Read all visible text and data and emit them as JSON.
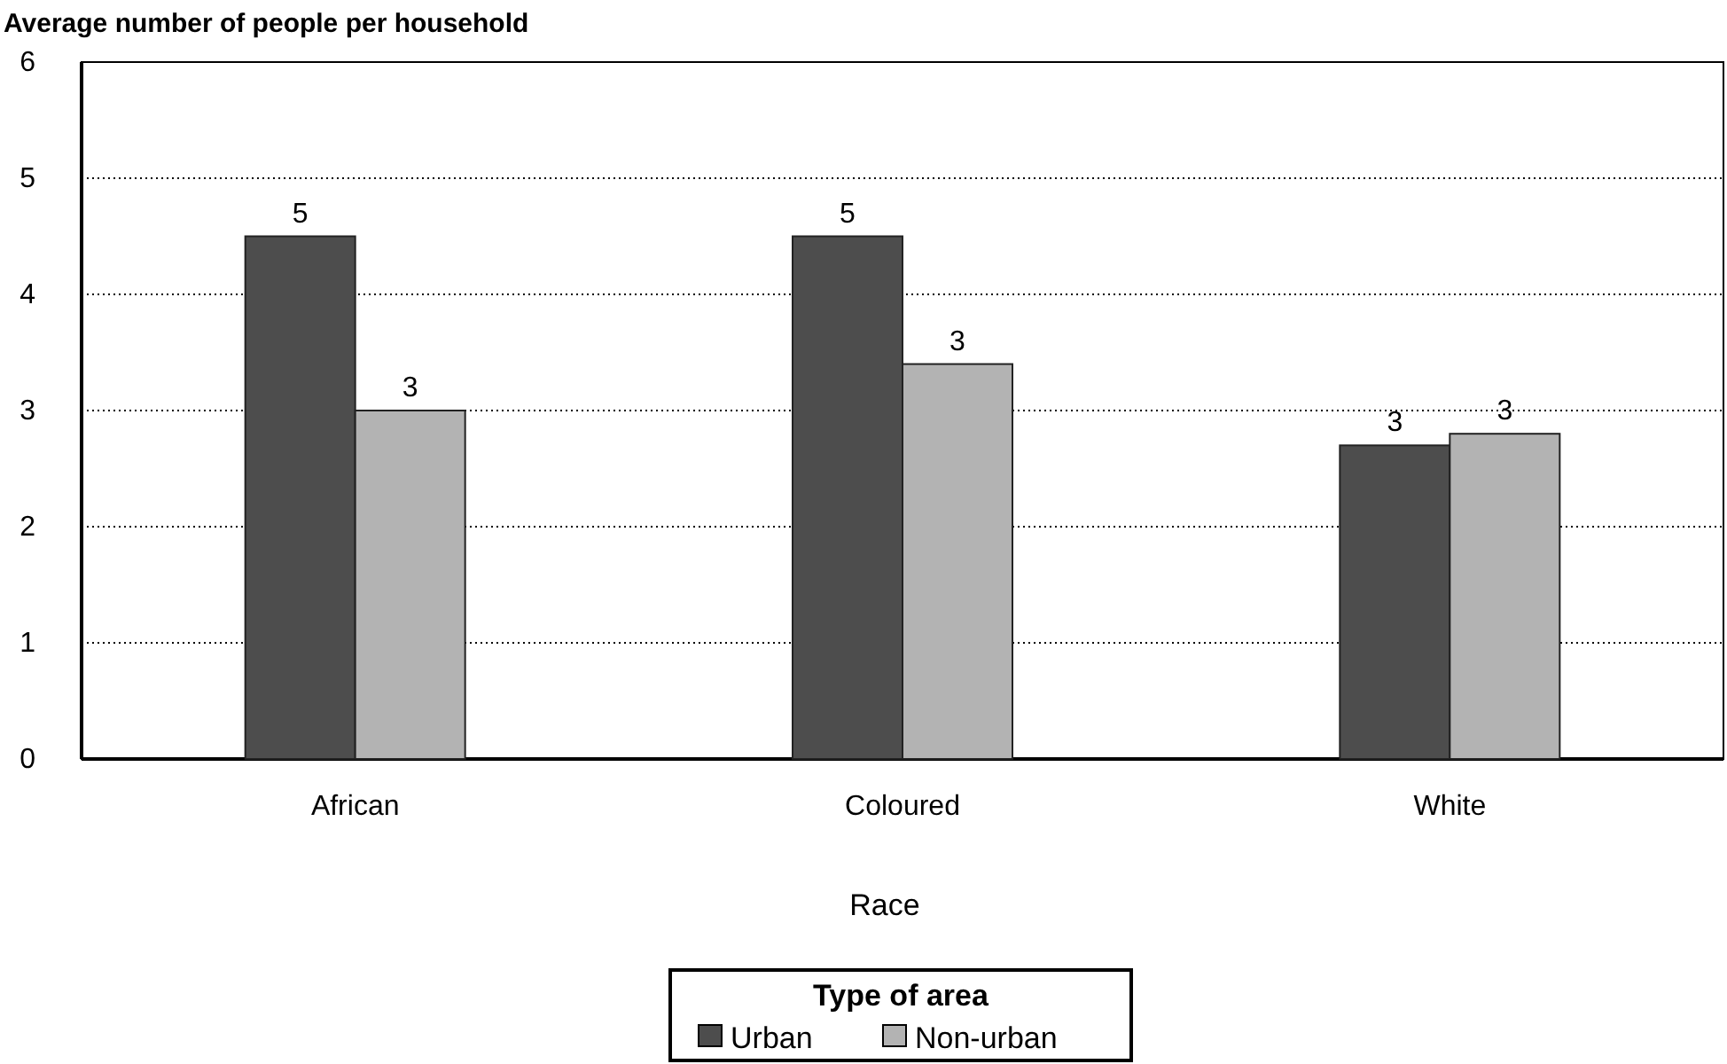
{
  "chart_data": {
    "type": "bar",
    "title": "Average number of people per household",
    "xlabel": "Race",
    "legend_title": "Type of area",
    "categories": [
      "African",
      "Coloured",
      "White"
    ],
    "series": [
      {
        "name": "Urban",
        "color": "#4d4d4d",
        "values": [
          4.5,
          4.5,
          2.7
        ],
        "value_labels": [
          "5",
          "5",
          "3"
        ]
      },
      {
        "name": "Non-urban",
        "color": "#b3b3b3",
        "values": [
          3.0,
          3.4,
          2.8
        ],
        "value_labels": [
          "3",
          "3",
          "3"
        ]
      }
    ],
    "ylim": [
      0,
      6
    ],
    "yticks": [
      0,
      1,
      2,
      3,
      4,
      5,
      6
    ],
    "grid": "y",
    "legend": "bottom"
  }
}
